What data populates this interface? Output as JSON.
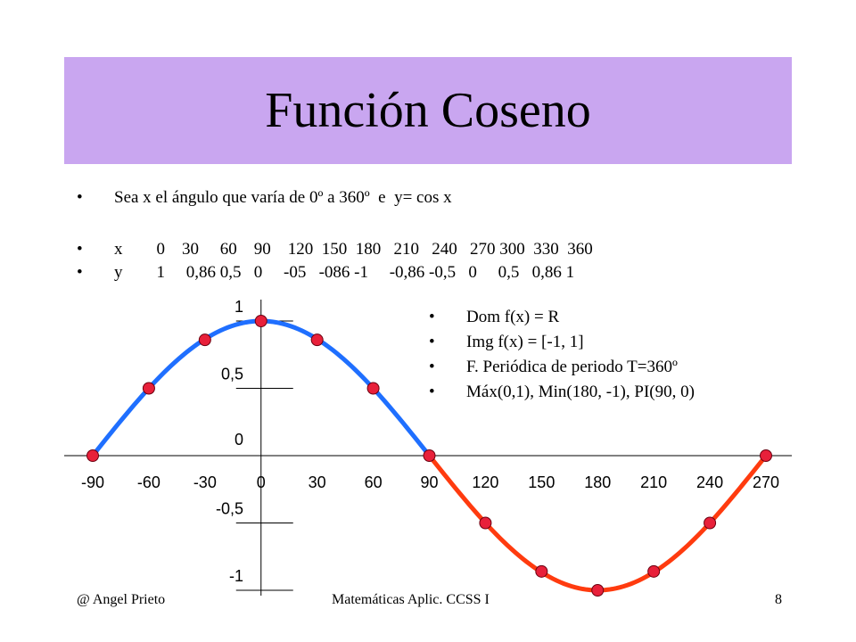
{
  "slide": {
    "title": "Función Coseno",
    "intro": "Sea x el ángulo que varía de 0º a 360º  e  y= cos x",
    "x_row": "x        0    30     60    90    120  150  180   210   240   270 300  330  360",
    "y_row": "y        1     0,86 0,5   0     -05   -086 -1     -0,86 -0,5   0     0,5   0,86 1",
    "properties": [
      "Dom f(x) = R",
      "Img f(x) = [-1, 1]",
      "F. Periódica de periodo T=360º",
      "Máx(0,1), Min(180, -1), PI(90, 0)"
    ]
  },
  "footer": {
    "author": "@ Angel Prieto",
    "course": "Matemáticas Aplic. CCSS I",
    "page": "8"
  },
  "chart_data": {
    "type": "line",
    "x_ticks": [
      "-90",
      "-60",
      "-30",
      "0",
      "30",
      "60",
      "90",
      "120",
      "150",
      "180",
      "210",
      "240",
      "270"
    ],
    "y_ticks": [
      {
        "value": 1,
        "label": "1"
      },
      {
        "value": 0.5,
        "label": "0,5"
      },
      {
        "value": 0,
        "label": "0"
      },
      {
        "value": -0.5,
        "label": "-0,5"
      },
      {
        "value": -1,
        "label": "-1"
      }
    ],
    "xlim": [
      -90,
      270
    ],
    "ylim": [
      -1,
      1
    ],
    "series": [
      {
        "color": "#1f6fff",
        "x": [
          -90,
          -60,
          -30,
          0,
          30,
          60,
          90
        ],
        "y": [
          0,
          0.5,
          0.86,
          1,
          0.86,
          0.5,
          0
        ]
      },
      {
        "color": "#ff3b0f",
        "x": [
          90,
          120,
          150,
          180,
          210,
          240,
          270
        ],
        "y": [
          0,
          -0.5,
          -0.86,
          -1,
          -0.86,
          -0.5,
          0
        ]
      }
    ],
    "point_color": "#e8203a"
  }
}
